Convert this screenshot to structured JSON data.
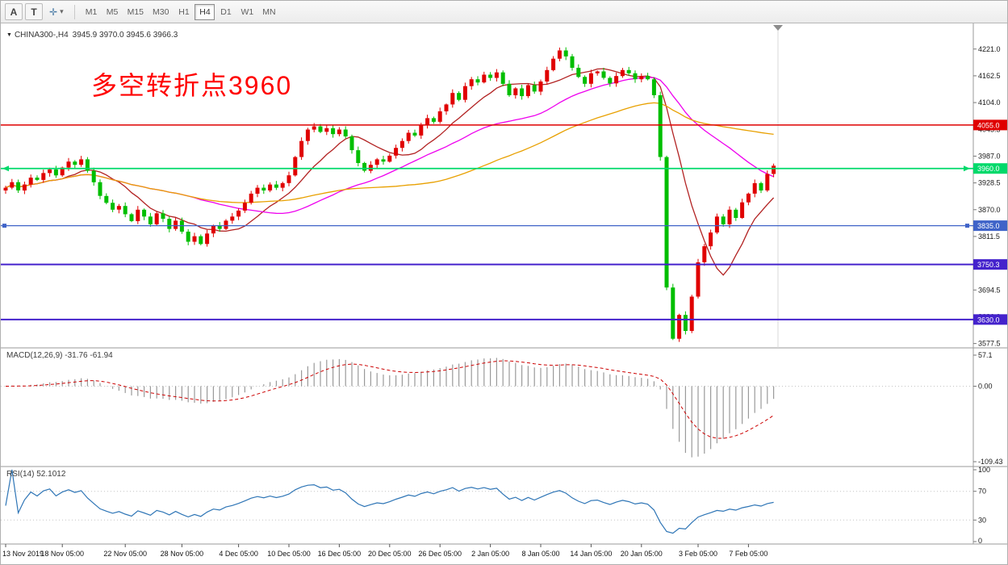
{
  "toolbar": {
    "tool_buttons": [
      {
        "label": "A"
      },
      {
        "label": "T"
      }
    ],
    "dropdown_icon": "✛",
    "dropdown_caret": "▾",
    "timeframes": [
      "M1",
      "M5",
      "M15",
      "M30",
      "H1",
      "H4",
      "D1",
      "W1",
      "MN"
    ],
    "active_timeframe": "H4"
  },
  "chart": {
    "symbol_icon": "▼",
    "symbol": "CHINA300-,H4",
    "ohlc": "3945.9 3970.0 3945.6 3966.3",
    "annotation": {
      "text": "多空转折点3960",
      "color": "#FF0000"
    }
  },
  "macd_panel": {
    "label": "MACD(12,26,9) -31.76 -61.94",
    "axis_labels": [
      "57.1",
      "0.00",
      "-109.43"
    ]
  },
  "rsi_panel": {
    "label": "RSI(14) 52.1012",
    "axis_labels": [
      "100",
      "70",
      "30",
      "0"
    ]
  },
  "time_axis": [
    {
      "label": "13 Nov 2019",
      "i": 0
    },
    {
      "label": "18 Nov 05:00",
      "i": 9
    },
    {
      "label": "22 Nov 05:00",
      "i": 19
    },
    {
      "label": "28 Nov 05:00",
      "i": 28
    },
    {
      "label": "4 Dec 05:00",
      "i": 37
    },
    {
      "label": "10 Dec 05:00",
      "i": 45
    },
    {
      "label": "16 Dec 05:00",
      "i": 53
    },
    {
      "label": "20 Dec 05:00",
      "i": 61
    },
    {
      "label": "26 Dec 05:00",
      "i": 69
    },
    {
      "label": "2 Jan 05:00",
      "i": 77
    },
    {
      "label": "8 Jan 05:00",
      "i": 85
    },
    {
      "label": "14 Jan 05:00",
      "i": 93
    },
    {
      "label": "20 Jan 05:00",
      "i": 101
    },
    {
      "label": "3 Feb 05:00",
      "i": 110
    },
    {
      "label": "7 Feb 05:00",
      "i": 118
    }
  ],
  "chart_data": {
    "type": "candlestick",
    "symbol": "CHINA300-",
    "timeframe": "H4",
    "first_open": 3912,
    "closes": [
      3918,
      3930,
      3912,
      3925,
      3940,
      3935,
      3950,
      3958,
      3945,
      3962,
      3975,
      3968,
      3980,
      3955,
      3930,
      3900,
      3885,
      3870,
      3878,
      3860,
      3845,
      3870,
      3855,
      3838,
      3862,
      3850,
      3828,
      3846,
      3822,
      3800,
      3812,
      3795,
      3818,
      3835,
      3828,
      3846,
      3855,
      3868,
      3885,
      3905,
      3918,
      3912,
      3925,
      3918,
      3928,
      3945,
      3985,
      4020,
      4045,
      4052,
      4040,
      4048,
      4035,
      4045,
      4030,
      4000,
      3972,
      3955,
      3968,
      3980,
      3975,
      3988,
      4005,
      4020,
      4038,
      4032,
      4055,
      4070,
      4062,
      4085,
      4100,
      4125,
      4110,
      4140,
      4155,
      4148,
      4165,
      4158,
      4170,
      4145,
      4120,
      4135,
      4118,
      4142,
      4128,
      4150,
      4175,
      4200,
      4218,
      4205,
      4180,
      4160,
      4145,
      4168,
      4172,
      4158,
      4146,
      4162,
      4175,
      4168,
      4155,
      4162,
      4155,
      4120,
      3985,
      3700,
      3588,
      3640,
      3605,
      3680,
      3755,
      3790,
      3820,
      3855,
      3838,
      3870,
      3852,
      3886,
      3905,
      3928,
      3912,
      3948,
      3966
    ],
    "price_axis": {
      "max": 4277,
      "min": 3568,
      "tick_values": [
        4221.0,
        4162.5,
        4104.0,
        4045.5,
        3987.0,
        3928.5,
        3870.0,
        3811.5,
        3753.0,
        3694.5,
        3636.0,
        3577.5
      ],
      "tick_labels": [
        "4221.0",
        "4162.5",
        "4104.0",
        "4045.5",
        "3987.0",
        "3928.5",
        "3870.0",
        "3811.5",
        "3753.0",
        "3694.5",
        "3636.0",
        "3577.5"
      ]
    },
    "colors": {
      "up": "#E00000",
      "down": "#00BE00"
    },
    "moving_averages": [
      {
        "period": 10,
        "color": "#B22222"
      },
      {
        "period": 30,
        "color": "#EE00EE"
      },
      {
        "period": 55,
        "color": "#E8A000"
      }
    ],
    "hlines": [
      {
        "value": 4055.0,
        "label": "4055.0",
        "color": "#DF0000",
        "width": 1.5,
        "endpoints": null
      },
      {
        "value": 3960.0,
        "label": "3960.0",
        "color": "#00D96A",
        "width": 1.8,
        "endpoints": "arrows"
      },
      {
        "value": 3835.0,
        "label": "3835.0",
        "color": "#3F63C8",
        "width": 1.2,
        "endpoints": "squares"
      },
      {
        "value": 3750.3,
        "label": "3750.3",
        "color": "#4422CC",
        "width": 2,
        "endpoints": null
      },
      {
        "value": 3630.0,
        "label": "3630.0",
        "color": "#4422CC",
        "width": 2,
        "endpoints": null
      }
    ],
    "macd": {
      "fast": 12,
      "slow": 26,
      "signal": 9,
      "value": -31.76,
      "signal_value": -61.94,
      "histogram_color": "#9A9A9A",
      "signal_color": "#CC0000"
    },
    "rsi": {
      "period": 14,
      "value": 52.1012,
      "color": "#2E75B6",
      "levels": [
        70,
        30
      ]
    }
  }
}
